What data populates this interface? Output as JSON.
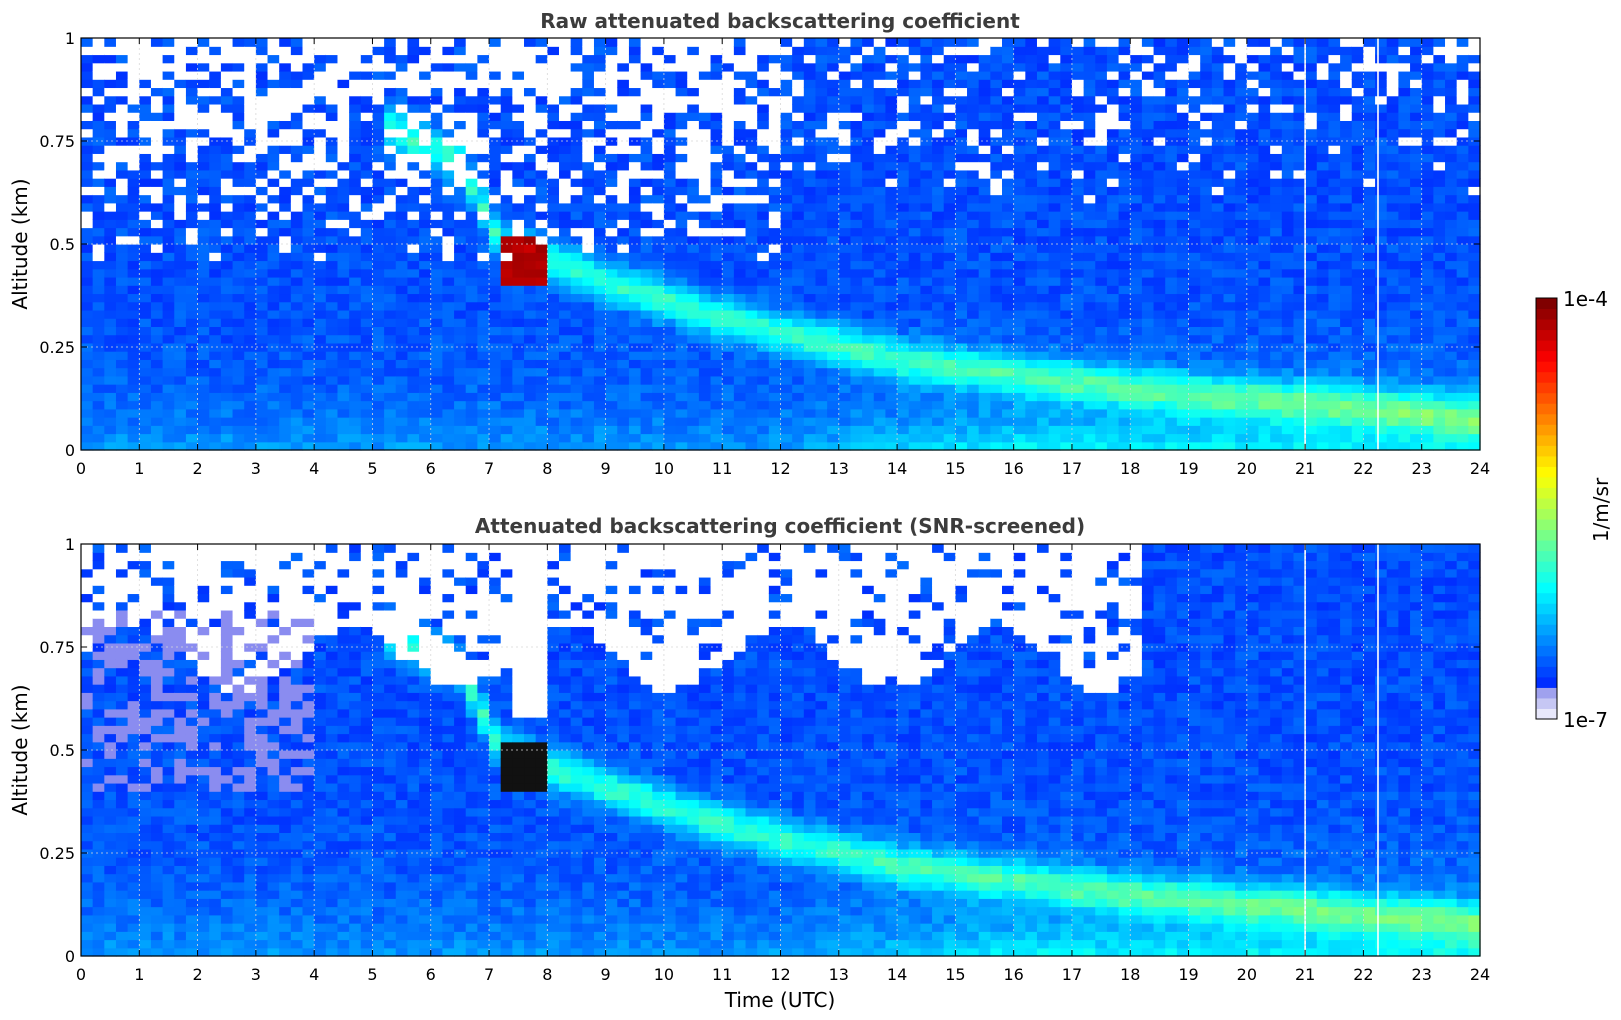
{
  "chart_data": [
    {
      "type": "heatmap",
      "title": "Raw attenuated backscattering coefficient",
      "xlabel": "",
      "ylabel": "Altitude (km)",
      "xlim": [
        0,
        24
      ],
      "ylim": [
        0,
        1
      ],
      "xticks": [
        "0",
        "1",
        "2",
        "3",
        "4",
        "5",
        "6",
        "7",
        "8",
        "9",
        "10",
        "11",
        "12",
        "13",
        "14",
        "15",
        "16",
        "17",
        "18",
        "19",
        "20",
        "21",
        "22",
        "23",
        "24"
      ],
      "yticks": [
        "0",
        "0.25",
        "0.5",
        "0.75",
        "1"
      ],
      "grid": true,
      "features": {
        "plume_path": [
          [
            5.3,
            0.78
          ],
          [
            6.5,
            0.7
          ],
          [
            7.2,
            0.5
          ],
          [
            8.0,
            0.46
          ],
          [
            9.0,
            0.41
          ],
          [
            11.0,
            0.32
          ],
          [
            14.0,
            0.22
          ],
          [
            18.0,
            0.15
          ],
          [
            24.0,
            0.08
          ]
        ],
        "high_values_region": {
          "x": [
            7.2,
            8.0
          ],
          "y": [
            0.4,
            0.52
          ]
        },
        "gaps_x": [
          21.0,
          22.25
        ]
      }
    },
    {
      "type": "heatmap",
      "title": "Attenuated backscattering coefficient (SNR-screened)",
      "xlabel": "Time (UTC)",
      "ylabel": "Altitude (km)",
      "xlim": [
        0,
        24
      ],
      "ylim": [
        0,
        1
      ],
      "xticks": [
        "0",
        "1",
        "2",
        "3",
        "4",
        "5",
        "6",
        "7",
        "8",
        "9",
        "10",
        "11",
        "12",
        "13",
        "14",
        "15",
        "16",
        "17",
        "18",
        "19",
        "20",
        "21",
        "22",
        "23",
        "24"
      ],
      "yticks": [
        "0",
        "0.25",
        "0.5",
        "0.75",
        "1"
      ],
      "grid": true,
      "features": {
        "plume_path": [
          [
            5.3,
            0.78
          ],
          [
            6.5,
            0.7
          ],
          [
            7.2,
            0.5
          ],
          [
            8.0,
            0.46
          ],
          [
            9.0,
            0.41
          ],
          [
            11.0,
            0.32
          ],
          [
            14.0,
            0.22
          ],
          [
            18.0,
            0.15
          ],
          [
            24.0,
            0.08
          ]
        ],
        "high_values_region": {
          "x": [
            7.2,
            8.0
          ],
          "y": [
            0.4,
            0.52
          ]
        },
        "gaps_x": [
          21.0,
          22.25
        ]
      }
    }
  ],
  "colorbar": {
    "label": "1/m/sr",
    "max_label": "1e-4",
    "min_label": "1e-7",
    "colormap": "jet"
  }
}
